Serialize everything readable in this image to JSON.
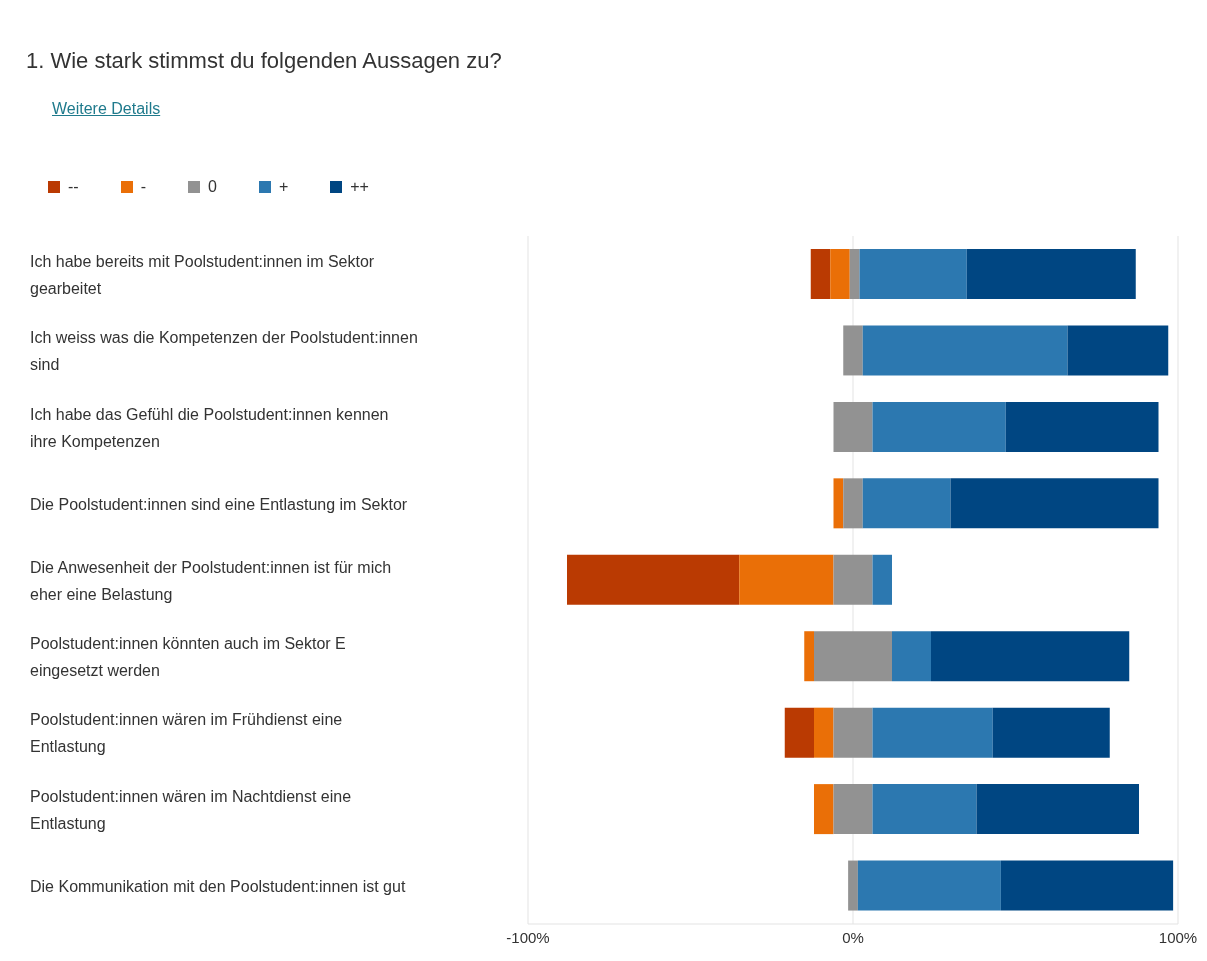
{
  "chart_data": {
    "type": "bar",
    "orientation": "horizontal",
    "title": "1.  Wie stark stimmst du folgenden Aussagen zu?",
    "annotations": [
      "Weitere Details"
    ],
    "categories": [
      "Ich habe bereits mit Poolstudent:innen im Sektor gearbeitet",
      "Ich weiss was die Kompetenzen der Poolstudent:innen sind",
      "Ich habe das Gefühl die Poolstudent:innen kennen ihre Kompetenzen",
      "Die Poolstudent:innen sind eine Entlastung im Sektor",
      "Die Anwesenheit der Poolstudent:innen ist für mich eher eine Belastung",
      "Poolstudent:innen könnten auch im Sektor E eingesetzt werden",
      "Poolstudent:innen wären im Frühdienst eine Entlastung",
      "Poolstudent:innen wären im Nachtdienst eine Entlastung",
      "Die Kommunikation mit den Poolstudent:innen ist gut"
    ],
    "series": [
      {
        "name": "--",
        "color": "#ba3a02",
        "base": [
          -13,
          null,
          null,
          null,
          -88,
          null,
          -21,
          null,
          null
        ],
        "values": [
          6,
          null,
          null,
          null,
          53,
          null,
          9,
          null,
          null
        ]
      },
      {
        "name": "-",
        "color": "#ea6f07",
        "base": [
          -7,
          null,
          null,
          -6,
          -35,
          -15,
          -12,
          -12,
          null
        ],
        "values": [
          6,
          null,
          null,
          3,
          29,
          3,
          6,
          6,
          null
        ]
      },
      {
        "name": "0",
        "color": "#929292",
        "base": [
          -1,
          -3,
          -6,
          -3,
          -6,
          -12,
          -6,
          -6,
          -1.5
        ],
        "values": [
          3,
          6,
          12,
          6,
          12,
          24,
          12,
          12,
          3
        ]
      },
      {
        "name": "+",
        "color": "#2c78b0",
        "base": [
          2,
          3,
          6,
          3,
          6,
          12,
          6,
          6,
          1.5
        ],
        "values": [
          33,
          63,
          41,
          27,
          6,
          12,
          37,
          32,
          44
        ]
      },
      {
        "name": "++",
        "color": "#004682",
        "base": [
          35,
          66,
          47,
          30,
          null,
          24,
          43,
          38,
          45.5
        ],
        "values": [
          52,
          31,
          47,
          64,
          null,
          61,
          36,
          50,
          53
        ]
      }
    ],
    "xlim": [
      -100,
      100
    ],
    "xticks": [
      {
        "value": -100,
        "label": "-100%"
      },
      {
        "value": 0,
        "label": "0%"
      },
      {
        "value": 100,
        "label": "100%"
      }
    ],
    "grid": "x",
    "legend": "top left"
  }
}
